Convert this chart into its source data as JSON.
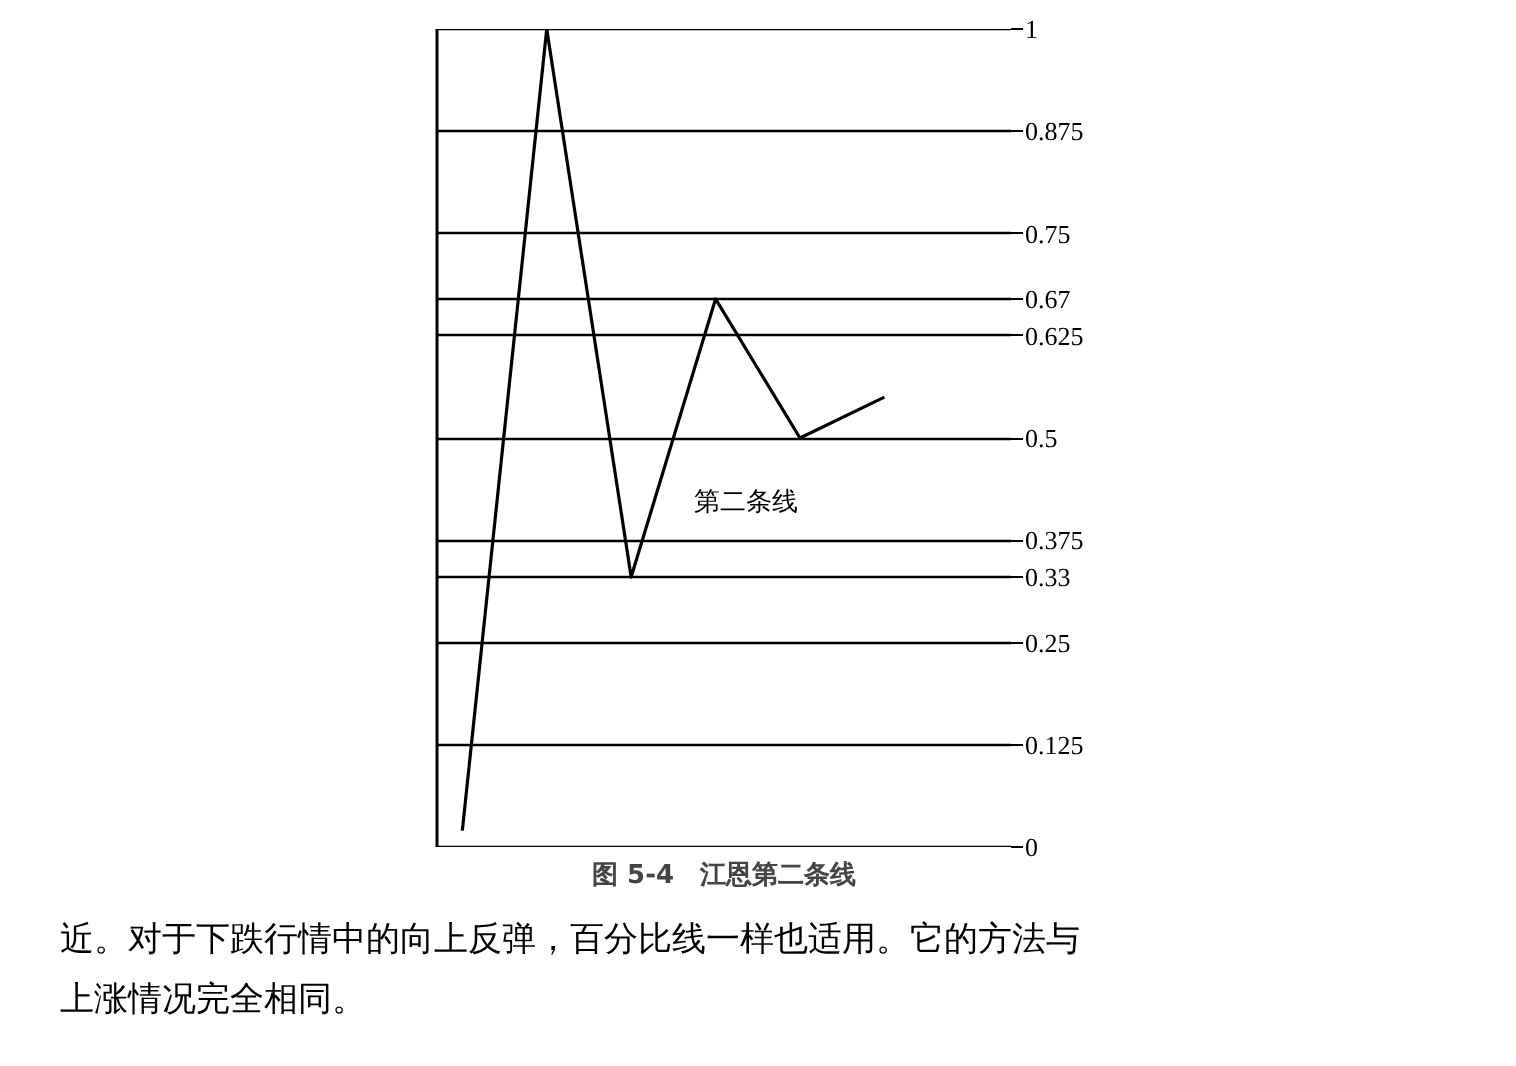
{
  "chart_data": {
    "type": "line",
    "title": "图 5-4　江恩第二条线",
    "categories": [
      null,
      null,
      null,
      null,
      null,
      null
    ],
    "series": [
      {
        "color": "#000000",
        "values": [
          0.02,
          1,
          0.33,
          0.67,
          0.5,
          0.55
        ]
      }
    ],
    "ylim": [
      0,
      1
    ],
    "yticks": [
      0,
      0.125,
      0.25,
      0.33,
      0.375,
      0.5,
      0.625,
      0.67,
      0.75,
      0.875,
      1
    ],
    "grid": "y",
    "tick_labels": "y",
    "marker": "none",
    "line_style": "solid",
    "annotations": [
      "第二条线",
      "近。对于下跌行情中的向上反弹，百分比线一样也适用。它的方法与",
      "上涨情况完全相同。"
    ]
  }
}
